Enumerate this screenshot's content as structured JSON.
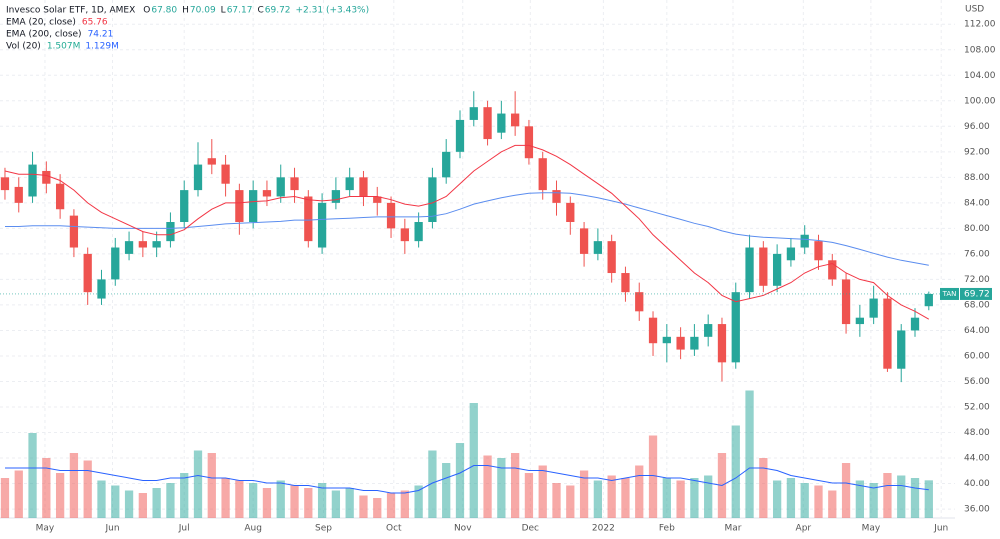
{
  "chart_data": {
    "type": "candlestick",
    "header": {
      "title": "Invesco Solar ETF, 1D, AMEX",
      "fields": [
        {
          "key": "O",
          "value": "67.80"
        },
        {
          "key": "H",
          "value": "70.09"
        },
        {
          "key": "L",
          "value": "67.17"
        },
        {
          "key": "C",
          "value": "69.72"
        }
      ],
      "change": "+2.31 (+3.43%)"
    },
    "indicators": [
      {
        "name": "EMA (20, close)",
        "values": [
          "65.76"
        ],
        "colors": [
          "#f23645"
        ]
      },
      {
        "name": "EMA (200, close)",
        "values": [
          "74.21"
        ],
        "colors": [
          "#2962ff"
        ]
      },
      {
        "name": "Vol (20)",
        "values": [
          "1.507M",
          "1.129M"
        ],
        "colors": [
          "#22ab94",
          "#2962ff"
        ]
      }
    ],
    "currency": "USD",
    "symbol": "TAN",
    "up_color": "#26a69a",
    "down_color": "#ef5350",
    "ema20_color": "#f23645",
    "ema200_color": "#5b8def",
    "vol_ma_color": "#2962ff",
    "price_line_color": "#26a69a",
    "grid": true,
    "xlim": [
      -0.36,
      68.9
    ],
    "xticks": [
      {
        "value": 2.9,
        "label": "May"
      },
      {
        "value": 7.8,
        "label": "Jun"
      },
      {
        "value": 13.0,
        "label": "Jul"
      },
      {
        "value": 18.0,
        "label": "Aug"
      },
      {
        "value": 23.1,
        "label": "Sep"
      },
      {
        "value": 28.2,
        "label": "Oct"
      },
      {
        "value": 33.2,
        "label": "Nov"
      },
      {
        "value": 38.1,
        "label": "Dec"
      },
      {
        "value": 43.4,
        "label": "2022"
      },
      {
        "value": 48.0,
        "label": "Feb"
      },
      {
        "value": 52.8,
        "label": "Mar"
      },
      {
        "value": 57.9,
        "label": "Apr"
      },
      {
        "value": 62.8,
        "label": "May"
      },
      {
        "value": 67.9,
        "label": "Jun"
      }
    ],
    "ylim": [
      34.6,
      115.8
    ],
    "yticks": [
      {
        "value": 36,
        "label": "36.00"
      },
      {
        "value": 40,
        "label": "40.00"
      },
      {
        "value": 44,
        "label": "44.00"
      },
      {
        "value": 48,
        "label": "48.00"
      },
      {
        "value": 52,
        "label": "52.00"
      },
      {
        "value": 56,
        "label": "56.00"
      },
      {
        "value": 60,
        "label": "60.00"
      },
      {
        "value": 64,
        "label": "64.00"
      },
      {
        "value": 68,
        "label": "68.00"
      },
      {
        "value": 72,
        "label": "72.00"
      },
      {
        "value": 76,
        "label": "76.00"
      },
      {
        "value": 80,
        "label": "80.00"
      },
      {
        "value": 84,
        "label": "84.00"
      },
      {
        "value": 88,
        "label": "88.00"
      },
      {
        "value": 92,
        "label": "92.00"
      },
      {
        "value": 96,
        "label": "96.00"
      },
      {
        "value": 100,
        "label": "100.00"
      },
      {
        "value": 104,
        "label": "104.00"
      },
      {
        "value": 108,
        "label": "108.00"
      },
      {
        "value": 112,
        "label": "112.00"
      }
    ],
    "volume_ylim": [
      0,
      6
    ],
    "open": [
      88,
      86.5,
      85,
      89,
      87,
      82,
      76,
      69,
      72,
      76,
      78,
      77,
      78,
      81,
      86,
      91,
      90,
      86,
      81,
      86,
      85,
      88,
      85,
      77,
      84,
      86,
      88,
      85,
      84,
      80,
      78,
      81,
      88,
      92,
      97,
      99,
      95,
      98,
      96,
      91,
      86,
      84,
      80,
      76,
      78,
      73,
      70,
      66,
      62,
      63,
      61,
      63,
      65,
      59,
      70,
      77,
      71,
      75,
      77,
      78,
      75,
      72,
      65,
      66,
      69,
      58,
      64,
      67.8
    ],
    "high": [
      89.5,
      88,
      92,
      90.5,
      88.5,
      83,
      77,
      73.5,
      78.5,
      79.5,
      79.5,
      79.5,
      82.5,
      87.5,
      93.5,
      94,
      91.5,
      87,
      87.5,
      87.5,
      90,
      89.5,
      86,
      85.5,
      88,
      89.5,
      89,
      86.5,
      85,
      81.5,
      82.5,
      89.5,
      94,
      98.5,
      101.5,
      100,
      100,
      101.5,
      97,
      92,
      87.5,
      85,
      81,
      80,
      79,
      74,
      71.5,
      67,
      65,
      64.5,
      65,
      66.5,
      66,
      71.5,
      79,
      78,
      77.5,
      78.5,
      80.5,
      79,
      76,
      73,
      68,
      71,
      70,
      65,
      67.5,
      70.09
    ],
    "low": [
      84.5,
      82.5,
      84,
      85.5,
      81.5,
      75.5,
      68,
      68,
      71,
      75,
      75.5,
      75.5,
      77,
      80,
      85,
      88.5,
      85,
      79,
      80,
      83.5,
      84,
      84,
      77,
      76,
      83,
      85,
      83.5,
      82,
      78.5,
      76,
      77,
      80,
      87,
      91,
      96,
      93,
      94,
      94.5,
      90,
      84.5,
      82,
      79,
      74,
      75,
      71.5,
      68.5,
      65.5,
      60,
      59,
      59.5,
      60,
      61.5,
      56,
      58,
      69,
      70,
      70,
      74,
      76,
      73.5,
      71,
      63.5,
      63,
      65,
      57.5,
      55.9,
      63,
      67.17
    ],
    "close": [
      86,
      84,
      90,
      87,
      83,
      77,
      70,
      72,
      77,
      78,
      77,
      78,
      81,
      86,
      90,
      90,
      87,
      81,
      86,
      85,
      88,
      86,
      78,
      84,
      86,
      88,
      85,
      84,
      80,
      78,
      81,
      88,
      92,
      97,
      99,
      94,
      98,
      96,
      91,
      86,
      84,
      81,
      76,
      78,
      73,
      70,
      67,
      62,
      63,
      61,
      63,
      65,
      59,
      70,
      77,
      71,
      76,
      77,
      79,
      75,
      72,
      65,
      66,
      69,
      58,
      64,
      66,
      69.72
    ],
    "volume": [
      1.6,
      1.9,
      3.4,
      2.4,
      1.8,
      2.6,
      2.3,
      1.5,
      1.3,
      1.1,
      1.0,
      1.2,
      1.4,
      1.8,
      2.7,
      2.6,
      1.6,
      1.5,
      1.4,
      1.2,
      1.5,
      1.3,
      1.2,
      1.4,
      1.1,
      1.2,
      0.9,
      0.8,
      1.0,
      1.1,
      1.3,
      2.7,
      2.2,
      3.0,
      4.6,
      2.5,
      2.4,
      2.6,
      1.8,
      2.1,
      1.4,
      1.3,
      1.9,
      1.5,
      1.7,
      1.6,
      2.1,
      3.3,
      1.6,
      1.5,
      1.6,
      1.7,
      2.6,
      3.7,
      5.1,
      2.4,
      1.5,
      1.6,
      1.4,
      1.3,
      1.1,
      2.2,
      1.5,
      1.4,
      1.8,
      1.7,
      1.6,
      1.507
    ],
    "volume_ma": [
      2.0,
      2.0,
      2.0,
      2.0,
      1.9,
      1.9,
      1.9,
      1.8,
      1.7,
      1.6,
      1.5,
      1.5,
      1.6,
      1.6,
      1.7,
      1.6,
      1.6,
      1.5,
      1.5,
      1.4,
      1.4,
      1.3,
      1.3,
      1.2,
      1.2,
      1.2,
      1.1,
      1.1,
      1.0,
      1.0,
      1.1,
      1.4,
      1.6,
      1.8,
      2.1,
      2.1,
      2.0,
      2.0,
      1.9,
      1.9,
      1.8,
      1.7,
      1.6,
      1.6,
      1.5,
      1.6,
      1.7,
      1.7,
      1.6,
      1.6,
      1.5,
      1.4,
      1.3,
      1.6,
      2.0,
      2.0,
      1.9,
      1.7,
      1.6,
      1.5,
      1.4,
      1.4,
      1.3,
      1.2,
      1.3,
      1.3,
      1.2,
      1.129
    ],
    "ema20": [
      89,
      88.5,
      88.5,
      88.3,
      87.5,
      86,
      84,
      82.5,
      81.5,
      80.5,
      79.5,
      79,
      79,
      79.8,
      81.5,
      83,
      84,
      84,
      84.2,
      84.3,
      84.8,
      85,
      84.5,
      84.3,
      84.5,
      85,
      85,
      85,
      84.5,
      83.8,
      83.5,
      84,
      85,
      87,
      89,
      90.5,
      92,
      93,
      93,
      92.3,
      91.3,
      90,
      88.5,
      87,
      85.5,
      83.5,
      81.5,
      79,
      77,
      75,
      73,
      71.5,
      69.5,
      68.5,
      69,
      69.5,
      70.5,
      71.5,
      73,
      74,
      74.5,
      73,
      72,
      71.5,
      69.5,
      68,
      67,
      65.76
    ],
    "ema200": [
      80.3,
      80.3,
      80.4,
      80.4,
      80.4,
      80.3,
      80.2,
      80.1,
      80,
      80,
      80,
      80,
      80,
      80.1,
      80.3,
      80.5,
      80.7,
      80.8,
      80.9,
      81,
      81.1,
      81.3,
      81.3,
      81.4,
      81.5,
      81.6,
      81.7,
      81.8,
      81.8,
      81.8,
      81.8,
      81.9,
      82.3,
      83,
      83.8,
      84.3,
      84.8,
      85.2,
      85.5,
      85.6,
      85.6,
      85.5,
      85.2,
      84.8,
      84.3,
      83.8,
      83.2,
      82.6,
      82,
      81.4,
      80.8,
      80.3,
      79.6,
      79.1,
      78.8,
      78.6,
      78.5,
      78.4,
      78.3,
      78.1,
      77.8,
      77.3,
      76.7,
      76.1,
      75.5,
      75,
      74.6,
      74.21
    ]
  }
}
